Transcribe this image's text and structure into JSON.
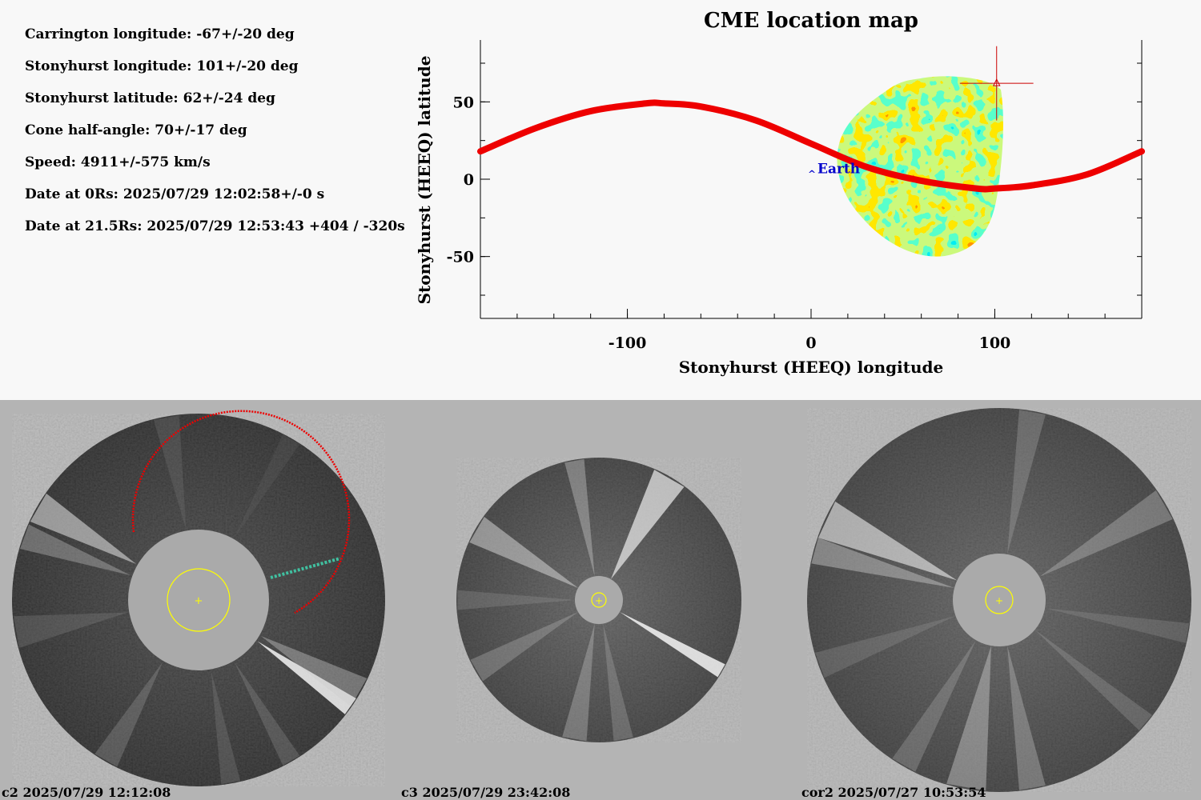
{
  "info": {
    "carrington_longitude": "Carrington longitude: -67+/-20 deg",
    "stonyhurst_longitude": "Stonyhurst longitude: 101+/-20 deg",
    "stonyhurst_latitude": "Stonyhurst latitude: 62+/-24 deg",
    "cone_half_angle": "Cone half-angle: 70+/-17 deg",
    "speed": "Speed: 4911+/-575 km/s",
    "date_0rs": "Date at 0Rs: 2025/07/29 12:02:58+/-0 s",
    "date_21_5rs": "Date at 21.5Rs: 2025/07/29 12:53:43 +404 / -320s"
  },
  "chart_data": {
    "type": "scatter",
    "title": "CME location map",
    "xlabel": "Stonyhurst (HEEQ) longitude",
    "ylabel": "Stonyhurst (HEEQ) latitude",
    "xlim": [
      -180,
      180
    ],
    "ylim": [
      -90,
      90
    ],
    "x_ticks": [
      -100,
      0,
      100
    ],
    "x_tick_labels": [
      "-100",
      "0",
      "100"
    ],
    "y_ticks": [
      50,
      0,
      -50
    ],
    "y_tick_labels": [
      "50",
      "0",
      "-50"
    ],
    "earth": {
      "label": "Earth",
      "lon": 0,
      "lat": 7
    },
    "cme_marker": {
      "lon": 101,
      "lat": 62,
      "lon_err": 20,
      "lat_err": 24
    },
    "ecliptic_curve": {
      "x": [
        -180,
        -150,
        -120,
        -90,
        -80,
        -60,
        -30,
        0,
        30,
        60,
        90,
        100,
        120,
        150,
        180
      ],
      "y": [
        18,
        33,
        44,
        49,
        49,
        47,
        38,
        23,
        8,
        -1,
        -6,
        -6,
        -4,
        3,
        18
      ]
    },
    "density_cloud_extent": {
      "lon": [
        13,
        104
      ],
      "lat": [
        -48,
        65
      ]
    }
  },
  "panels": [
    {
      "instrument": "c2",
      "label": "c2 2025/07/29 12:12:08"
    },
    {
      "instrument": "c3",
      "label": "c3 2025/07/29 23:42:08"
    },
    {
      "instrument": "cor2",
      "label": "cor2 2025/07/27 10:53:54"
    }
  ],
  "colors": {
    "curve": "#ee0000",
    "earth": "#0000cc",
    "sun_circle": "#ffff00",
    "panel_bg": "#b4b4b4",
    "occulter": "#aaaaaa"
  }
}
